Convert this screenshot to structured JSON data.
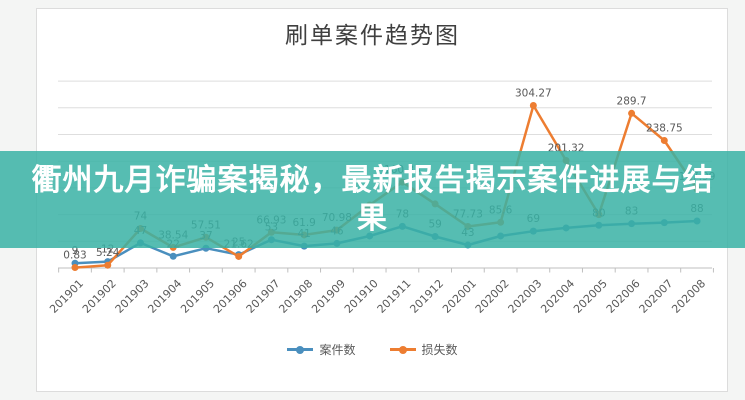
{
  "title": "刷单案件趋势图",
  "overlay": {
    "line1": "衢州九月诈骗案揭秘，最新报告揭示案件进展与结",
    "line2": "果",
    "bg_color": "rgba(56,178,165,0.85)",
    "text_color": "#ffffff"
  },
  "legend": [
    {
      "name": "案件数",
      "color": "#4A8FBE"
    },
    {
      "name": "损失数",
      "color": "#ED7D31"
    }
  ],
  "colors": {
    "gridline": "#dedede",
    "axis": "#bfbfbf",
    "label_text": "#595959",
    "title_text": "#3f3f3f"
  },
  "chart_data": {
    "type": "line",
    "title": "刷单案件趋势图",
    "categories": [
      "201901",
      "201902",
      "201903",
      "201904",
      "201905",
      "201906",
      "201907",
      "201908",
      "201909",
      "201910",
      "201911",
      "201912",
      "202001",
      "202002",
      "202003",
      "202004",
      "202005",
      "202006",
      "202007",
      "202008"
    ],
    "series": [
      {
        "name": "案件数",
        "color": "#4A8FBE",
        "values": [
          9,
          12,
          47,
          22,
          37,
          25,
          53,
          41,
          46,
          60,
          78,
          59,
          43,
          60,
          69,
          75,
          80,
          83,
          85,
          88
        ],
        "labels": [
          "9",
          "12",
          "47",
          "22",
          "37",
          "25",
          "53",
          "41",
          "46",
          "",
          "78",
          "59",
          "43",
          "",
          "69",
          "",
          "80",
          "83",
          "",
          "88"
        ]
      },
      {
        "name": "损失数",
        "color": "#ED7D31",
        "values": [
          0.83,
          5.24,
          74,
          38.54,
          57.51,
          21.62,
          66.93,
          61.9,
          70.98,
          118,
          160.83,
          120,
          77.73,
          85.6,
          304.27,
          201.32,
          100,
          289.7,
          238.75,
          147.99
        ],
        "labels": [
          "0.83",
          "5.24",
          "74",
          "38.54",
          "57.51",
          "21.62",
          "66.93",
          "61.9",
          "70.98",
          "",
          "160.83",
          "",
          "77.73",
          "85.6",
          "304.27",
          "201.32",
          "",
          "289.7",
          "238.75",
          "147.99"
        ]
      }
    ],
    "ylim": [
      0,
      350
    ],
    "gridline_step": 50,
    "grid": true,
    "y_axis_labels_visible": false,
    "legend_position": "bottom"
  }
}
